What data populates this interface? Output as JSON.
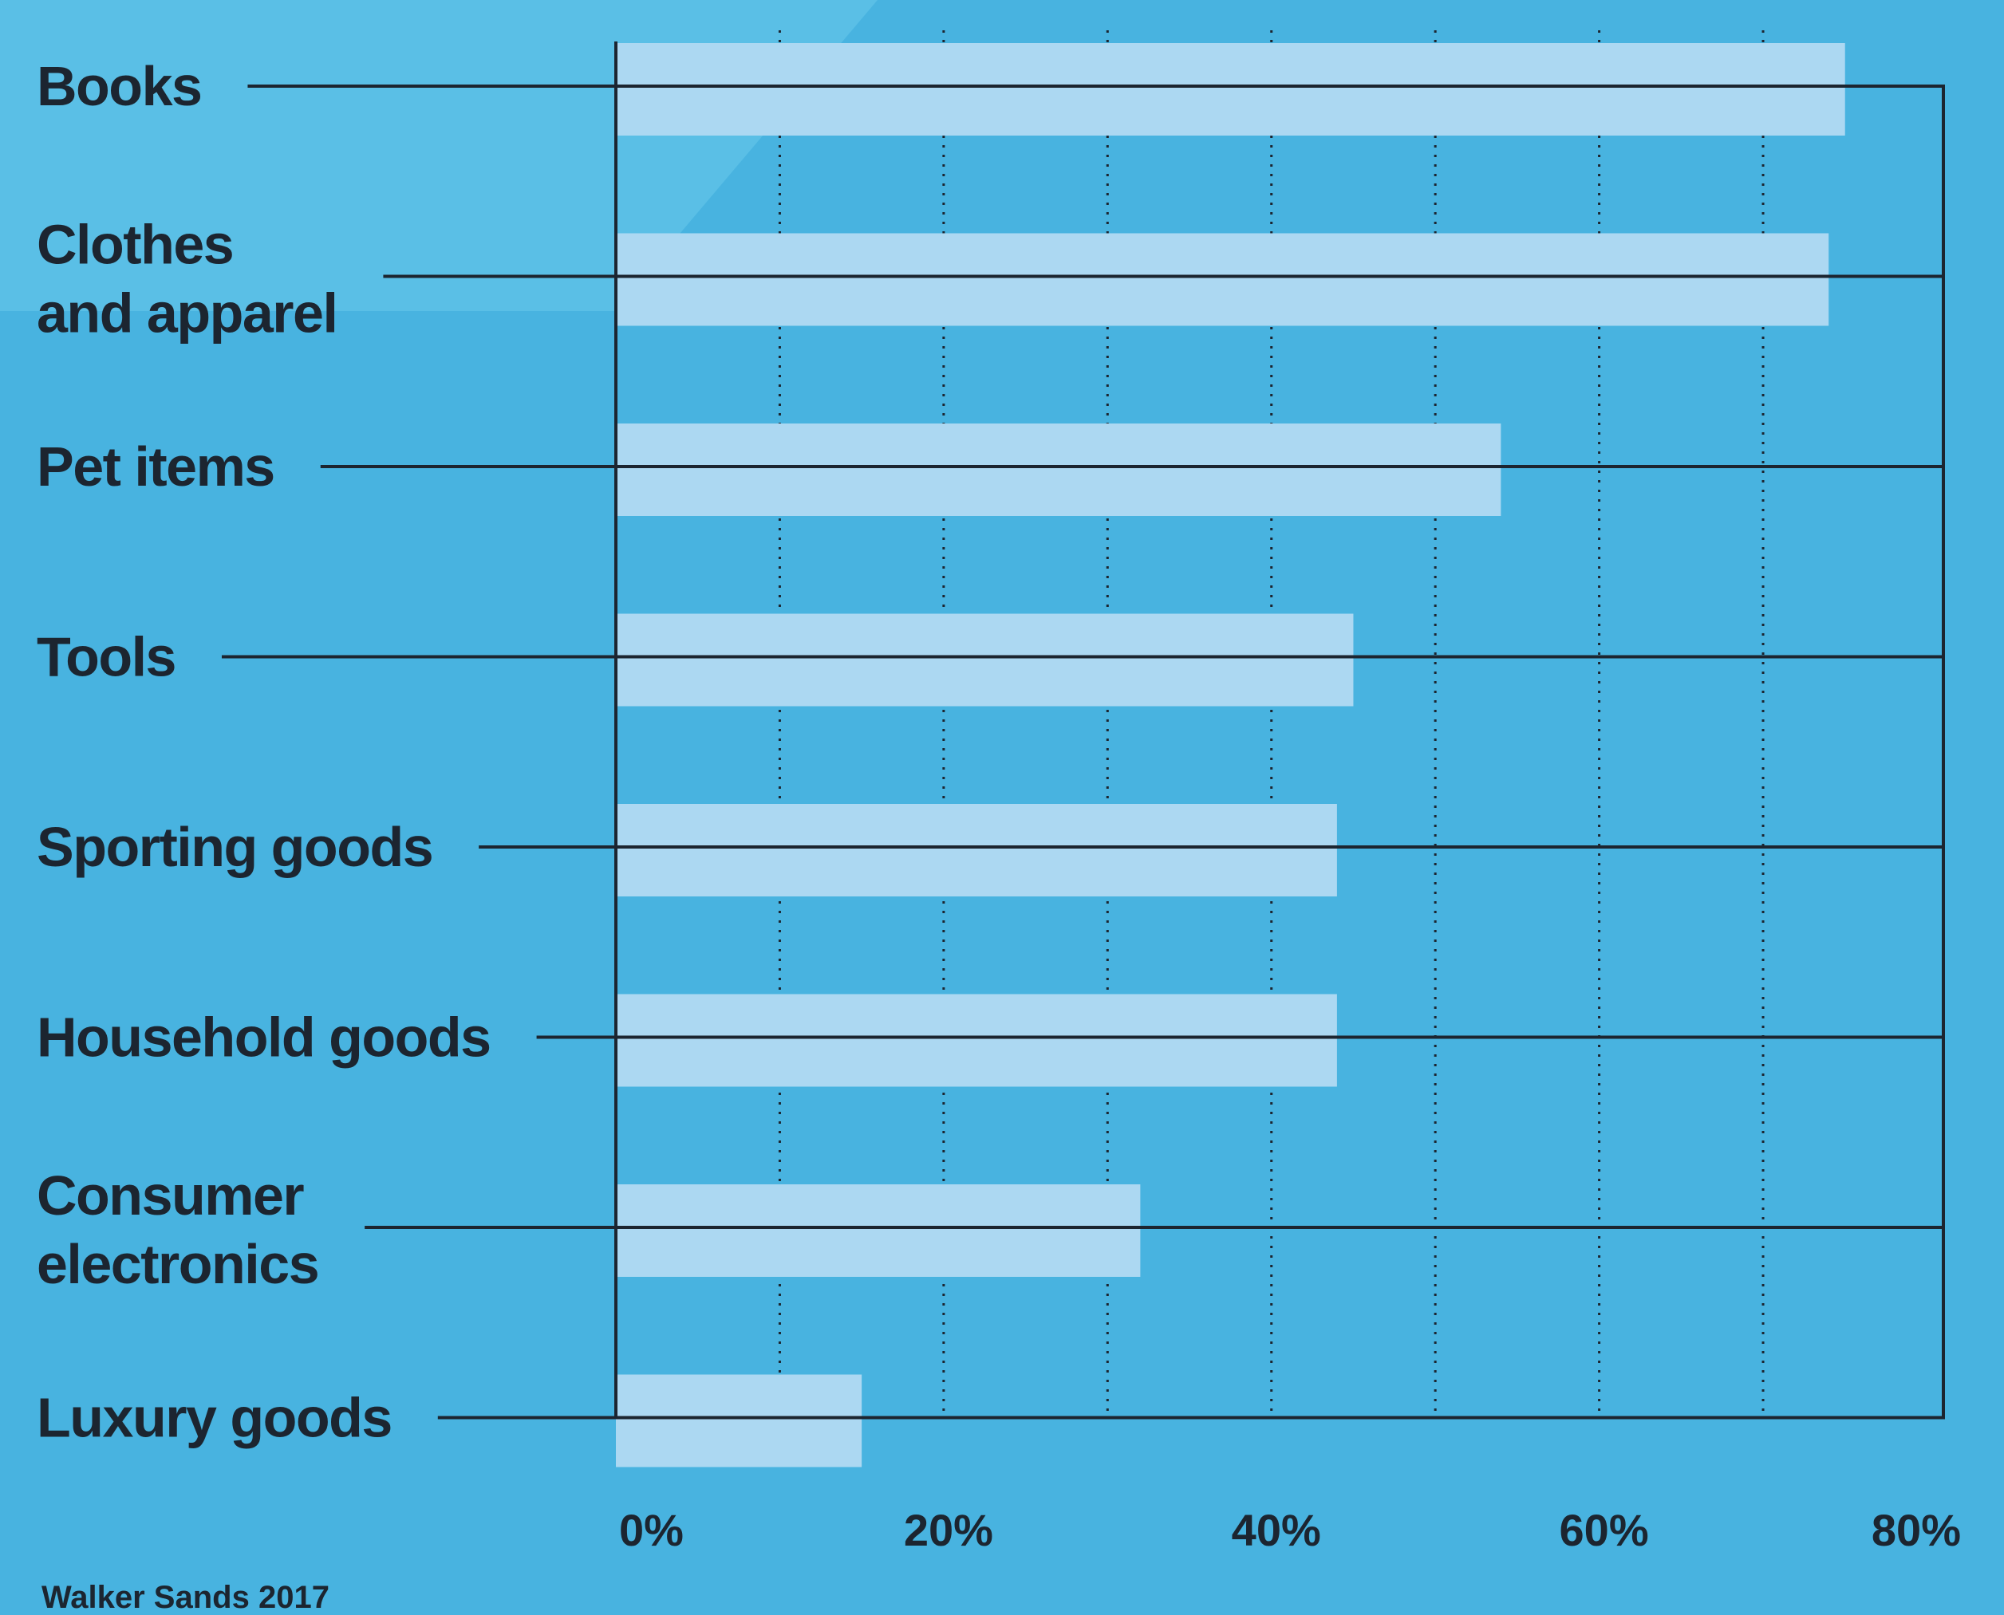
{
  "colors": {
    "background": "#48b3e0",
    "background_highlight": "#5abfe6",
    "bar": "#acd8f2",
    "ink": "#1c2530"
  },
  "source": "Walker Sands 2017",
  "chart_data": {
    "type": "bar",
    "orientation": "horizontal",
    "categories": [
      [
        "Books"
      ],
      [
        "Clothes",
        "and apparel"
      ],
      [
        "Pet items"
      ],
      [
        "Tools"
      ],
      [
        "Sporting goods"
      ],
      [
        "Household goods"
      ],
      [
        "Consumer",
        "electronics"
      ],
      [
        "Luxury goods"
      ]
    ],
    "values": [
      75,
      74,
      54,
      45,
      44,
      44,
      32,
      15
    ],
    "xlim": [
      0,
      81
    ],
    "x_ticks": [
      0,
      20,
      40,
      60,
      80
    ],
    "x_tick_labels": [
      "0%",
      "20%",
      "40%",
      "60%",
      "80%"
    ],
    "gridlines": [
      10,
      20,
      30,
      40,
      50,
      60,
      70
    ],
    "grid": "dotted vertical",
    "legend": "none"
  }
}
